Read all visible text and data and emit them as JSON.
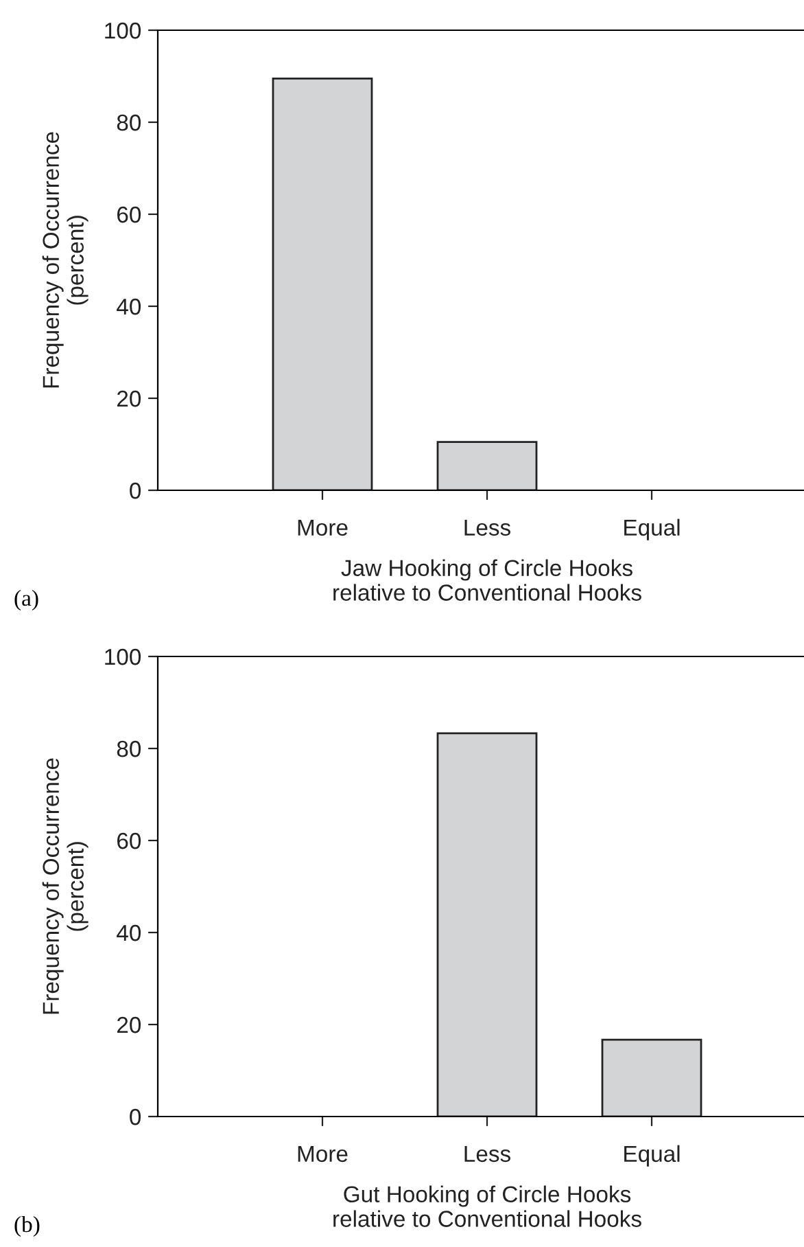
{
  "chart_data": [
    {
      "type": "bar",
      "categories": [
        "More",
        "Less",
        "Equal"
      ],
      "values": [
        89.5,
        10.5,
        0
      ],
      "color": "#d3d4d6",
      "xlabel": "Jaw Hooking of Circle Hooks\nrelative to Conventional Hooks",
      "ylabel": "Frequency of Occurrence\n(percent)",
      "ylim": [
        0,
        100
      ],
      "yticks": [
        0,
        20,
        40,
        60,
        80,
        100
      ],
      "grid": false,
      "annotations": [
        "(a)"
      ]
    },
    {
      "type": "bar",
      "categories": [
        "More",
        "Less",
        "Equal"
      ],
      "values": [
        0,
        83.3,
        16.7
      ],
      "color": "#d3d4d6",
      "xlabel": "Gut Hooking of Circle Hooks\nrelative to Conventional Hooks",
      "ylabel": "Frequency of Occurrence\n(percent)",
      "ylim": [
        0,
        100
      ],
      "yticks": [
        0,
        20,
        40,
        60,
        80,
        100
      ],
      "grid": false,
      "annotations": [
        "(b)"
      ]
    }
  ]
}
